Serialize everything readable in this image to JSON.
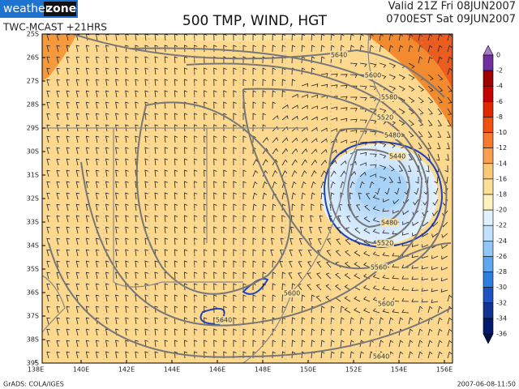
{
  "header": {
    "logo_left": "weather",
    "logo_right": "zone",
    "subtitle": "TWC-MCAST +21HRS",
    "title": "500 TMP, WIND, HGT",
    "valid_line1": "Valid 21Z Fri 08JUN2007",
    "valid_line2": "0700EST Sat 09JUN2007"
  },
  "lat_labels": [
    "25S",
    "26S",
    "27S",
    "28S",
    "29S",
    "30S",
    "31S",
    "32S",
    "33S",
    "34S",
    "35S",
    "36S",
    "37S",
    "38S",
    "39S"
  ],
  "lon_labels": [
    "138E",
    "140E",
    "142E",
    "144E",
    "146E",
    "148E",
    "150E",
    "152E",
    "154E",
    "156E"
  ],
  "colorbar": {
    "labels": [
      "0",
      "-2",
      "-4",
      "-6",
      "-8",
      "-10",
      "-12",
      "-14",
      "-16",
      "-18",
      "-20",
      "-22",
      "-24",
      "-26",
      "-28",
      "-30",
      "-32",
      "-34",
      "-36"
    ]
  },
  "contour_labels": [
    "5640",
    "5600",
    "5580",
    "5520",
    "5480",
    "5440",
    "5480",
    "5520",
    "5560",
    "5600",
    "5600",
    "5640",
    "5640"
  ],
  "footer": {
    "left": "GrADS: COLA/IGES",
    "right": "2007-06-08-11:50"
  }
}
